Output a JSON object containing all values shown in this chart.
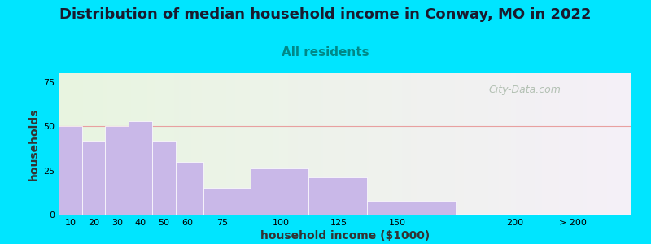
{
  "title": "Distribution of median household income in Conway, MO in 2022",
  "subtitle": "All residents",
  "xlabel": "household income ($1000)",
  "ylabel": "households",
  "bar_labels": [
    "10",
    "20",
    "30",
    "40",
    "50",
    "60",
    "75",
    "100",
    "125",
    "150",
    "200",
    "> 200"
  ],
  "bar_values": [
    50,
    42,
    50,
    53,
    42,
    30,
    15,
    26,
    21,
    8,
    0.5,
    0.5
  ],
  "bar_color": "#c9b8e8",
  "bar_left_edges": [
    5,
    15,
    25,
    35,
    45,
    55,
    67,
    87,
    112,
    137,
    175,
    210
  ],
  "bar_widths": [
    10,
    10,
    10,
    10,
    10,
    12,
    20,
    25,
    25,
    38,
    35,
    40
  ],
  "xlim": [
    5,
    250
  ],
  "ylim": [
    0,
    80
  ],
  "yticks": [
    0,
    25,
    50,
    75
  ],
  "xtick_locs": [
    10,
    20,
    30,
    40,
    50,
    60,
    75,
    100,
    125,
    150,
    200,
    225
  ],
  "bg_color_outer": "#00e5ff",
  "bg_color_plot_left": "#e8f5e0",
  "bg_color_plot_right": "#f5f0f8",
  "title_fontsize": 13,
  "subtitle_fontsize": 11,
  "subtitle_color": "#008888",
  "watermark_text": "City-Data.com",
  "watermark_color": "#a8b8a8",
  "grid_color": "#e8a0a0",
  "axis_label_fontsize": 10
}
